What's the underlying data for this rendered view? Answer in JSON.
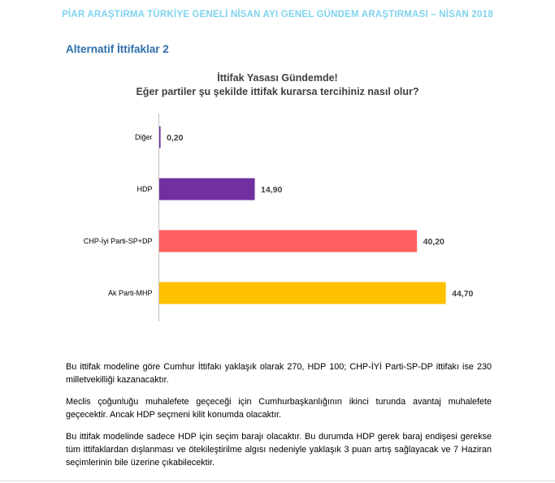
{
  "header": {
    "title": "PİAR ARAŞTIRMA TÜRKİYE GENELİ NİSAN AYI GENEL GÜNDEM ARAŞTIRMASI – NİSAN 2018"
  },
  "section": {
    "title": "Alternatif İttifaklar 2"
  },
  "chart_data": {
    "type": "bar",
    "orientation": "horizontal",
    "title": "İttifak Yasası Gündemde!",
    "subtitle": "Eğer partiler şu şekilde ittifak kurarsa tercihiniz nasıl olur?",
    "categories": [
      "Diğer",
      "HDP",
      "CHP-İyi Parti-SP+DP",
      "Ak Parti-MHP"
    ],
    "values": [
      0.2,
      14.9,
      40.2,
      44.7
    ],
    "value_labels": [
      "0,20",
      "14,90",
      "40,20",
      "44,70"
    ],
    "colors": [
      "#7030a0",
      "#7030a0",
      "#ff5f5f",
      "#ffc000"
    ],
    "xlabel": "",
    "ylabel": "",
    "xlim": [
      0,
      45
    ],
    "grid": false,
    "legend": "none"
  },
  "paragraphs": [
    "Bu ittifak modeline göre Cumhur İttifakı yaklaşık olarak 270, HDP 100; CHP-İYİ Parti-SP-DP ittifakı ise 230 milletvekilliği kazanacaktır.",
    "Meclis çoğunluğu muhalefete geçeceği için Cumhurbaşkanlığının ikinci turunda avantaj muhalefete geçecektir. Ancak HDP seçmeni kilit konumda olacaktır.",
    "Bu ittifak modelinde sadece HDP için seçim barajı olacaktır. Bu durumda HDP gerek baraj endişesi gerekse tüm ittifaklardan dışlanması ve ötekileştirilme algısı nedeniyle yaklaşık 3 puan artış sağlayacak ve 7 Haziran seçimlerinin bile üzerine çıkabilecektir."
  ]
}
